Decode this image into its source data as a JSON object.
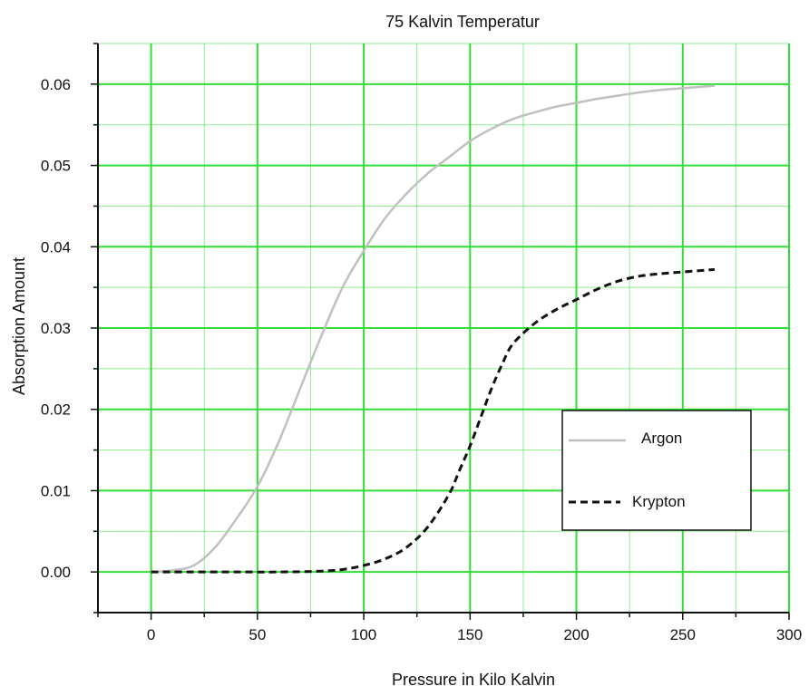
{
  "chart_data": {
    "type": "line",
    "title": "75 Kalvin Temperatur",
    "xlabel": "Pressure in Kilo Kalvin",
    "ylabel": "Absorption Amount",
    "xlim": [
      -25,
      300
    ],
    "ylim": [
      -0.005,
      0.065
    ],
    "x_ticks": [
      "0",
      "50",
      "100",
      "150",
      "200",
      "250",
      "300"
    ],
    "y_ticks": [
      "0.00",
      "0.01",
      "0.02",
      "0.03",
      "0.04",
      "0.05",
      "0.06"
    ],
    "grid": true,
    "grid_color": "#33dd33",
    "legend_position": "right",
    "series": [
      {
        "name": "Argon",
        "color": "#c0c0c0",
        "style": "solid",
        "x": [
          0,
          10,
          20,
          30,
          40,
          50,
          60,
          70,
          80,
          90,
          100,
          110,
          120,
          130,
          140,
          150,
          160,
          170,
          180,
          190,
          200,
          210,
          220,
          230,
          240,
          250,
          265
        ],
        "y": [
          0.0,
          0.0002,
          0.0008,
          0.003,
          0.0065,
          0.0105,
          0.016,
          0.0225,
          0.029,
          0.035,
          0.0395,
          0.0435,
          0.0465,
          0.049,
          0.051,
          0.053,
          0.0545,
          0.0557,
          0.0565,
          0.0572,
          0.0577,
          0.0582,
          0.0586,
          0.059,
          0.0593,
          0.0595,
          0.0598
        ]
      },
      {
        "name": "Krypton",
        "color": "#111111",
        "style": "dashed",
        "x": [
          0,
          20,
          40,
          60,
          80,
          90,
          100,
          110,
          120,
          130,
          140,
          145,
          150,
          155,
          160,
          165,
          170,
          180,
          190,
          200,
          210,
          220,
          230,
          240,
          250,
          265
        ],
        "y": [
          0.0,
          0.0,
          0.0,
          0.0,
          0.0001,
          0.0003,
          0.0008,
          0.0016,
          0.003,
          0.0055,
          0.0095,
          0.0125,
          0.0155,
          0.019,
          0.0225,
          0.0255,
          0.028,
          0.0305,
          0.0322,
          0.0335,
          0.0348,
          0.0358,
          0.0364,
          0.0367,
          0.0369,
          0.0372
        ]
      }
    ]
  }
}
